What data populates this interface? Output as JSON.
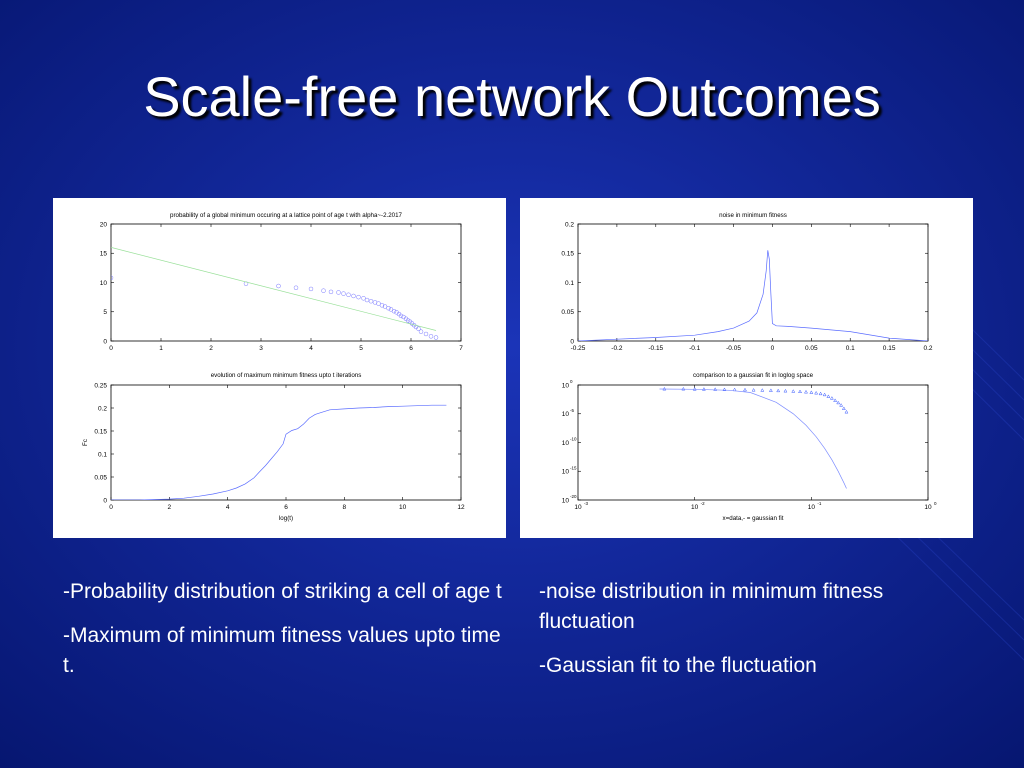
{
  "slide": {
    "title": "Scale-free network Outcomes",
    "background_color": "#0b1f86",
    "captions_left": [
      "-Probability distribution of striking a cell of age t",
      "-Maximum of minimum fitness values upto time t."
    ],
    "captions_right": [
      "-noise distribution in minimum fitness fluctuation",
      "-Gaussian fit to the fluctuation"
    ]
  },
  "chart_data": [
    {
      "type": "scatter",
      "title": "probability of a global minimum occuring at a lattice point of age t with alpha~-2.2017",
      "xlabel": "",
      "ylabel": "",
      "xlim": [
        0,
        7
      ],
      "ylim": [
        0,
        20
      ],
      "xticks": [
        0,
        1,
        2,
        3,
        4,
        5,
        6,
        7
      ],
      "yticks": [
        0,
        5,
        10,
        15,
        20
      ],
      "grid": false,
      "series": [
        {
          "kind": "markers",
          "marker": "circle",
          "color": "#7d7dff",
          "x": [
            0,
            2.7,
            3.35,
            3.7,
            4.0,
            4.25,
            4.4,
            4.55,
            4.65,
            4.75,
            4.85,
            4.95,
            5.05,
            5.12,
            5.2,
            5.28,
            5.35,
            5.42,
            5.48,
            5.55,
            5.6,
            5.66,
            5.71,
            5.76,
            5.8,
            5.85,
            5.9,
            5.94,
            5.98,
            6.02,
            6.06,
            6.1,
            6.15,
            6.2,
            6.3,
            6.4,
            6.5
          ],
          "y": [
            10.8,
            9.8,
            9.4,
            9.1,
            8.9,
            8.6,
            8.4,
            8.3,
            8.1,
            7.9,
            7.7,
            7.5,
            7.3,
            7.0,
            6.8,
            6.6,
            6.4,
            6.1,
            5.9,
            5.6,
            5.4,
            5.1,
            4.9,
            4.6,
            4.3,
            4.1,
            3.8,
            3.5,
            3.3,
            3.0,
            2.7,
            2.4,
            2.1,
            1.6,
            1.2,
            0.8,
            0.6
          ]
        },
        {
          "kind": "line",
          "color": "#99e099",
          "x": [
            0,
            6.5
          ],
          "y": [
            16,
            1.8
          ]
        }
      ]
    },
    {
      "type": "line",
      "title": "noise in minimum fitness",
      "xlabel": "",
      "ylabel": "",
      "xlim": [
        -0.25,
        0.2
      ],
      "ylim": [
        0,
        0.2
      ],
      "xticks": [
        -0.25,
        -0.2,
        -0.15,
        -0.1,
        -0.05,
        0,
        0.05,
        0.1,
        0.15,
        0.2
      ],
      "yticks": [
        0,
        0.05,
        0.1,
        0.15,
        0.2
      ],
      "grid": false,
      "series": [
        {
          "kind": "line",
          "color": "#5a6cff",
          "x": [
            -0.25,
            -0.2,
            -0.15,
            -0.1,
            -0.07,
            -0.05,
            -0.03,
            -0.02,
            -0.012,
            -0.008,
            -0.006,
            -0.004,
            -0.002,
            0.0,
            0.005,
            0.02,
            0.05,
            0.1,
            0.15,
            0.2
          ],
          "y": [
            0.0,
            0.003,
            0.006,
            0.01,
            0.016,
            0.022,
            0.034,
            0.048,
            0.08,
            0.12,
            0.155,
            0.14,
            0.08,
            0.03,
            0.026,
            0.025,
            0.022,
            0.016,
            0.005,
            0.0
          ]
        }
      ]
    },
    {
      "type": "line",
      "title": "evolution of maximum minimum fitness upto t iterations",
      "xlabel": "log(t)",
      "ylabel": "Fc",
      "xlim": [
        0,
        12
      ],
      "ylim": [
        0,
        0.25
      ],
      "xticks": [
        0,
        2,
        4,
        6,
        8,
        10,
        12
      ],
      "yticks": [
        0,
        0.05,
        0.1,
        0.15,
        0.2,
        0.25
      ],
      "grid": false,
      "series": [
        {
          "kind": "line",
          "color": "#5a6cff",
          "x": [
            0,
            1,
            2,
            2.5,
            3,
            3.5,
            4,
            4.3,
            4.6,
            4.9,
            5.1,
            5.3,
            5.5,
            5.7,
            5.9,
            6.0,
            6.2,
            6.4,
            6.6,
            6.8,
            7.0,
            7.2,
            7.5,
            8,
            8.5,
            9,
            9.5,
            10,
            10.5,
            11,
            11.5
          ],
          "y": [
            0,
            0.0,
            0.002,
            0.004,
            0.008,
            0.013,
            0.02,
            0.026,
            0.035,
            0.048,
            0.062,
            0.075,
            0.09,
            0.105,
            0.122,
            0.143,
            0.151,
            0.155,
            0.165,
            0.178,
            0.186,
            0.19,
            0.196,
            0.198,
            0.2,
            0.201,
            0.203,
            0.204,
            0.205,
            0.206,
            0.206
          ]
        }
      ]
    },
    {
      "type": "line",
      "title": "comparison to a gaussian fit in loglog space",
      "xlabel": "x=data,- = gaussian fit",
      "ylabel": "",
      "xscale": "log",
      "yscale": "log",
      "xlim": [
        0.001,
        1
      ],
      "ylim": [
        1e-20,
        1
      ],
      "xtick_labels": [
        {
          "v": 0.001,
          "base": "10",
          "exp": "-3"
        },
        {
          "v": 0.01,
          "base": "10",
          "exp": "-2"
        },
        {
          "v": 0.1,
          "base": "10",
          "exp": "-1"
        },
        {
          "v": 1,
          "base": "10",
          "exp": "0"
        }
      ],
      "ytick_labels": [
        {
          "v": 1,
          "base": "10",
          "exp": "0"
        },
        {
          "v": 1e-05,
          "base": "10",
          "exp": "-5"
        },
        {
          "v": 1e-10,
          "base": "10",
          "exp": "-10"
        },
        {
          "v": 1e-15,
          "base": "10",
          "exp": "-15"
        },
        {
          "v": 1e-20,
          "base": "10",
          "exp": "-20"
        }
      ],
      "grid": false,
      "series": [
        {
          "kind": "markers",
          "marker": "triangle",
          "color": "#3355ff",
          "x": [
            0.0055,
            0.008,
            0.01,
            0.012,
            0.015,
            0.018,
            0.022,
            0.027,
            0.032,
            0.038,
            0.045,
            0.052,
            0.06,
            0.07,
            0.08,
            0.09,
            0.1,
            0.11,
            0.12,
            0.13,
            0.14,
            0.15,
            0.16,
            0.17,
            0.18,
            0.19,
            0.2
          ],
          "y": [
            0.2,
            0.2,
            0.19,
            0.18,
            0.17,
            0.16,
            0.15,
            0.14,
            0.13,
            0.12,
            0.11,
            0.1,
            0.09,
            0.08,
            0.07,
            0.06,
            0.05,
            0.04,
            0.03,
            0.02,
            0.01,
            0.005,
            0.002,
            0.0008,
            0.0003,
            8e-05,
            2e-05
          ]
        },
        {
          "kind": "line",
          "color": "#7d8dff",
          "x": [
            0.005,
            0.01,
            0.02,
            0.03,
            0.05,
            0.07,
            0.09,
            0.11,
            0.13,
            0.15,
            0.17,
            0.19,
            0.2
          ],
          "y": [
            0.2,
            0.18,
            0.12,
            0.05,
            0.001,
            1e-05,
            1e-07,
            1e-09,
            1e-11,
            1e-13,
            1e-15,
            1e-17,
            1e-18
          ]
        }
      ]
    }
  ]
}
